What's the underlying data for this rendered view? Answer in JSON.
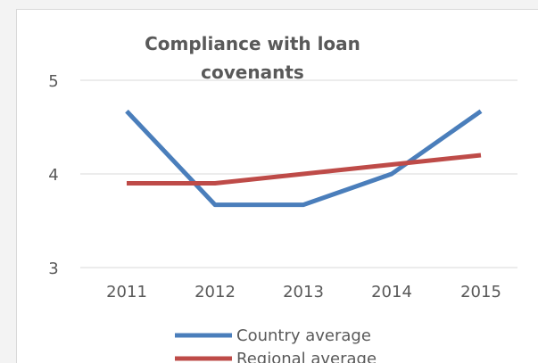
{
  "chart_data": {
    "type": "line",
    "title_lines": [
      "Compliance with loan",
      "covenants"
    ],
    "categories": [
      "2011",
      "2012",
      "2013",
      "2014",
      "2015"
    ],
    "series": [
      {
        "name": "Country average",
        "values": [
          4.67,
          3.67,
          3.67,
          4.0,
          4.67
        ],
        "color": "#4a7ebb"
      },
      {
        "name": "Regional average",
        "values": [
          3.9,
          3.9,
          4.0,
          4.1,
          4.2
        ],
        "color": "#be4b48"
      }
    ],
    "ylim": [
      3,
      5
    ],
    "yticks": [
      "3",
      "4",
      "5"
    ],
    "grid": true,
    "legend_position": "bottom"
  }
}
